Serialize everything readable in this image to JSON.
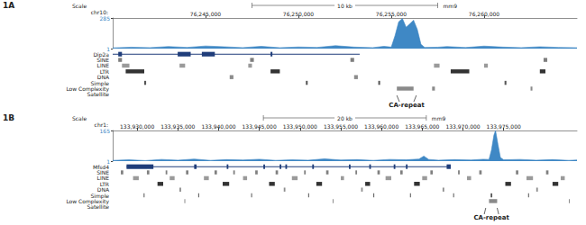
{
  "chart_data": [
    {
      "type": "genome_browser",
      "label": "1A",
      "scale_title": "Scale",
      "chrom": "chr10:",
      "assembly": "mm9",
      "scale": {
        "label": "10 kb",
        "bp": 10000
      },
      "xlim": [
        76240000,
        76265000
      ],
      "xticks": [
        {
          "value": 76245000,
          "label": "76,245,000"
        },
        {
          "value": 76250000,
          "label": "76,250,000"
        },
        {
          "value": 76255000,
          "label": "76,255,000"
        },
        {
          "value": 76260000,
          "label": "76,260,000"
        }
      ],
      "signal": {
        "color": "#3f88c5",
        "ylim": [
          1,
          285
        ],
        "yticks": [
          1,
          285
        ],
        "x": [
          76240000,
          76241000,
          76242000,
          76243000,
          76244000,
          76245000,
          76246000,
          76247000,
          76248000,
          76249000,
          76250000,
          76251000,
          76252000,
          76253000,
          76254000,
          76254600,
          76255000,
          76255200,
          76255400,
          76255600,
          76255800,
          76256000,
          76256200,
          76256400,
          76256600,
          76256800,
          76257500,
          76258000,
          76259000,
          76260000,
          76261000,
          76262000,
          76263000,
          76264000,
          76265000
        ],
        "values": [
          8,
          14,
          10,
          20,
          12,
          25,
          18,
          10,
          22,
          9,
          16,
          12,
          28,
          15,
          10,
          22,
          15,
          120,
          250,
          280,
          200,
          230,
          265,
          180,
          40,
          12,
          14,
          20,
          11,
          24,
          15,
          10,
          18,
          12,
          9
        ]
      },
      "gene": {
        "name": "Dip2a",
        "color": "#1f3d7a",
        "start": 76239800,
        "end": 76253300,
        "exons": [
          [
            76240300,
            76240500
          ],
          [
            76243500,
            76244200
          ],
          [
            76244800,
            76245500
          ],
          [
            76248500,
            76248600
          ]
        ]
      },
      "repeats": [
        {
          "name": "SINE",
          "color": "#7f7f7f",
          "intervals": [
            [
              76240300,
              76240500
            ],
            [
              76247400,
              76247600
            ],
            [
              76252800,
              76253000
            ],
            [
              76263200,
              76263400
            ]
          ]
        },
        {
          "name": "LINE",
          "color": "#9a9a9a",
          "intervals": [
            [
              76240500,
              76240900
            ],
            [
              76243600,
              76243900
            ],
            [
              76247300,
              76247500
            ],
            [
              76257300,
              76257600
            ],
            [
              76260000,
              76260200
            ]
          ]
        },
        {
          "name": "LTR",
          "color": "#333333",
          "intervals": [
            [
              76240700,
              76241700
            ],
            [
              76248500,
              76249000
            ],
            [
              76258200,
              76259200
            ],
            [
              76263000,
              76263300
            ]
          ]
        },
        {
          "name": "DNA",
          "color": "#8c8c8c",
          "intervals": [
            [
              76246300,
              76246500
            ],
            [
              76253000,
              76253200
            ]
          ]
        },
        {
          "name": "Simple",
          "color": "#555555",
          "intervals": [
            [
              76241700,
              76241800
            ],
            [
              76250400,
              76250500
            ],
            [
              76254300,
              76254400
            ],
            [
              76261100,
              76261200
            ]
          ]
        },
        {
          "name": "Low Complexity",
          "color": "#8a8a8a",
          "intervals": [
            [
              76255300,
              76256200
            ],
            [
              76257200,
              76257350
            ],
            [
              76262500,
              76262600
            ]
          ]
        },
        {
          "name": "Satellite",
          "color": "#777777",
          "intervals": []
        }
      ],
      "annotation": {
        "text": "CA-repeat",
        "start": 76255300,
        "end": 76256350
      }
    },
    {
      "type": "genome_browser",
      "label": "1B",
      "scale_title": "Scale",
      "chrom": "chr1:",
      "assembly": "mm9",
      "scale": {
        "label": "20 kb",
        "bp": 20000
      },
      "xlim": [
        133927000,
        133984000
      ],
      "xticks": [
        {
          "value": 133930000,
          "label": "133,930,000"
        },
        {
          "value": 133935000,
          "label": "133,935,000"
        },
        {
          "value": 133940000,
          "label": "133,940,000"
        },
        {
          "value": 133945000,
          "label": "133,945,000"
        },
        {
          "value": 133950000,
          "label": "133,950,000"
        },
        {
          "value": 133955000,
          "label": "133,955,000"
        },
        {
          "value": 133960000,
          "label": "133,960,000"
        },
        {
          "value": 133965000,
          "label": "133,965,000"
        },
        {
          "value": 133970000,
          "label": "133,970,000"
        },
        {
          "value": 133975000,
          "label": "133,975,000"
        }
      ],
      "signal": {
        "color": "#3f88c5",
        "ylim": [
          1,
          165
        ],
        "yticks": [
          1,
          165
        ],
        "x": [
          133927000,
          133929000,
          133931000,
          133933000,
          133935000,
          133937000,
          133939000,
          133941000,
          133943000,
          133945000,
          133947000,
          133949000,
          133951000,
          133953000,
          133955000,
          133957000,
          133959000,
          133961000,
          133963000,
          133964600,
          133965200,
          133965800,
          133967000,
          133969000,
          133971000,
          133972500,
          133973200,
          133973500,
          133973800,
          133974000,
          133974300,
          133974600,
          133975000,
          133977000,
          133979000,
          133981000,
          133983000,
          133984000
        ],
        "values": [
          5,
          8,
          4,
          10,
          6,
          12,
          5,
          9,
          7,
          11,
          5,
          8,
          6,
          13,
          7,
          9,
          5,
          10,
          8,
          12,
          28,
          10,
          6,
          9,
          7,
          11,
          10,
          60,
          140,
          165,
          90,
          20,
          8,
          10,
          6,
          9,
          5,
          7
        ]
      },
      "gene": {
        "name": "Mfsd4",
        "color": "#1f3d7a",
        "start": 133928700,
        "end": 133968500,
        "exons": [
          [
            133928700,
            133932000
          ],
          [
            133937000,
            133937300
          ],
          [
            133941000,
            133941200
          ],
          [
            133945500,
            133945700
          ],
          [
            133947500,
            133947700
          ],
          [
            133948200,
            133948400
          ],
          [
            133951500,
            133951700
          ],
          [
            133956000,
            133956200
          ],
          [
            133958500,
            133958700
          ],
          [
            133961500,
            133961700
          ],
          [
            133963000,
            133963200
          ],
          [
            133968000,
            133968500
          ]
        ]
      },
      "repeats": [
        {
          "name": "SINE",
          "color": "#7f7f7f",
          "intervals": [
            [
              133928000,
              133928300
            ],
            [
              133931200,
              133931500
            ],
            [
              133933500,
              133933700
            ],
            [
              133936000,
              133936300
            ],
            [
              133939500,
              133939800
            ],
            [
              133941800,
              133942000
            ],
            [
              133944500,
              133944800
            ],
            [
              133947000,
              133947300
            ],
            [
              133950500,
              133950700
            ],
            [
              133953200,
              133953500
            ],
            [
              133956800,
              133957000
            ],
            [
              133959500,
              133959800
            ],
            [
              133962300,
              133962600
            ],
            [
              133966000,
              133966300
            ],
            [
              133969400,
              133969600
            ],
            [
              133972000,
              133972300
            ],
            [
              133976500,
              133976800
            ],
            [
              133980200,
              133980500
            ]
          ]
        },
        {
          "name": "LINE",
          "color": "#9a9a9a",
          "intervals": [
            [
              133929500,
              133930200
            ],
            [
              133934000,
              133934600
            ],
            [
              133938200,
              133938800
            ],
            [
              133943000,
              133943500
            ],
            [
              133949000,
              133949700
            ],
            [
              133955000,
              133955400
            ],
            [
              133960500,
              133961200
            ],
            [
              133965000,
              133965600
            ],
            [
              133970500,
              133971000
            ],
            [
              133977800,
              133978600
            ],
            [
              133982000,
              133982500
            ]
          ]
        },
        {
          "name": "LTR",
          "color": "#333333",
          "intervals": [
            [
              133932500,
              133933200
            ],
            [
              133940500,
              133941300
            ],
            [
              133946200,
              133946900
            ],
            [
              133952000,
              133952700
            ],
            [
              133958000,
              133958600
            ],
            [
              133964000,
              133964700
            ],
            [
              133975200,
              133975900
            ],
            [
              133981000,
              133981700
            ]
          ]
        },
        {
          "name": "DNA",
          "color": "#8c8c8c",
          "intervals": [
            [
              133935200,
              133935400
            ],
            [
              133948000,
              133948200
            ],
            [
              133957500,
              133957700
            ],
            [
              133967500,
              133967700
            ],
            [
              133979000,
              133979200
            ]
          ]
        },
        {
          "name": "Simple",
          "color": "#555555",
          "intervals": [
            [
              133930800,
              133930900
            ],
            [
              133937500,
              133937600
            ],
            [
              133944000,
              133944100
            ],
            [
              133951000,
              133951100
            ],
            [
              133959000,
              133959100
            ],
            [
              133963500,
              133963600
            ],
            [
              133968800,
              133968900
            ],
            [
              133973400,
              133973600
            ],
            [
              133978000,
              133978100
            ]
          ]
        },
        {
          "name": "Low Complexity",
          "color": "#8a8a8a",
          "intervals": [
            [
              133935800,
              133935900
            ],
            [
              133954000,
              133954100
            ],
            [
              133973200,
              133974200
            ],
            [
              133983000,
              133983100
            ]
          ]
        },
        {
          "name": "Satellite",
          "color": "#777777",
          "intervals": []
        }
      ],
      "annotation": {
        "text": "CA-repeat",
        "start": 133972800,
        "end": 133974200
      }
    }
  ]
}
